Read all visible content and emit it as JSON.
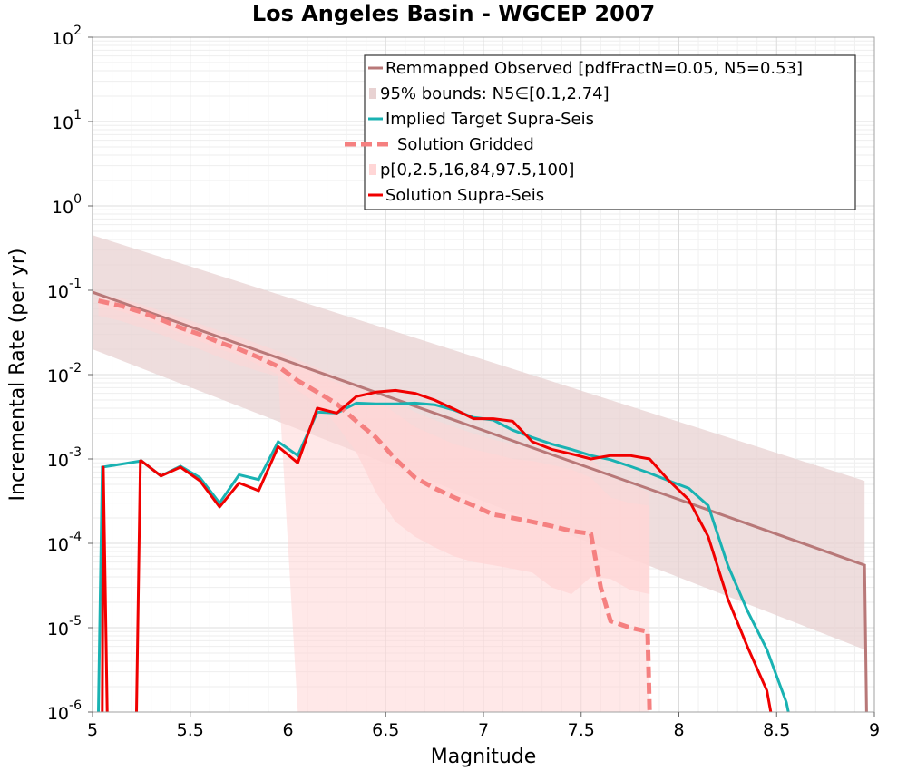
{
  "chart_data": {
    "type": "line",
    "title": "Los Angeles Basin - WGCEP 2007",
    "xlabel": "Magnitude",
    "ylabel": "Incremental Rate (per yr)",
    "xlim": [
      5,
      9
    ],
    "ylim": [
      1e-06,
      100
    ],
    "y_scale": "log",
    "grid": true,
    "legend_position": "top-right",
    "x_ticks": [
      "5",
      "5.5",
      "6",
      "6.5",
      "7",
      "7.5",
      "8",
      "8.5",
      "9"
    ],
    "y_ticks": [
      {
        "base": "10",
        "exp": "-6"
      },
      {
        "base": "10",
        "exp": "-5"
      },
      {
        "base": "10",
        "exp": "-4"
      },
      {
        "base": "10",
        "exp": "-3"
      },
      {
        "base": "10",
        "exp": "-2"
      },
      {
        "base": "10",
        "exp": "-1"
      },
      {
        "base": "10",
        "exp": "0"
      },
      {
        "base": "10",
        "exp": "1"
      },
      {
        "base": "10",
        "exp": "2"
      }
    ],
    "colors": {
      "observed": "#b87878",
      "bounds_fill": "#e8d2d2",
      "target": "#19b2b2",
      "gridded": "#f58080",
      "pfill": "#ffd6d6",
      "solution": "#f00000"
    },
    "series": [
      {
        "name": "Remmapped Observed [pdfFractN=0.05, N5=0.53]",
        "style": "line",
        "x": [
          5.0,
          8.95,
          8.96
        ],
        "y": [
          0.095,
          5.5e-05,
          1e-06
        ]
      },
      {
        "name": "95% bounds: N5∈[0.1,2.74]",
        "style": "band",
        "x": [
          5.0,
          8.95
        ],
        "upper": [
          0.45,
          0.00055
        ],
        "lower": [
          0.02,
          5.5e-06
        ]
      },
      {
        "name": "Implied Target Supra-Seis",
        "style": "line",
        "x": [
          5.03,
          5.05,
          5.25,
          5.35,
          5.45,
          5.55,
          5.65,
          5.75,
          5.85,
          5.95,
          6.05,
          6.15,
          6.25,
          6.35,
          6.45,
          6.55,
          6.65,
          6.75,
          6.85,
          6.95,
          7.05,
          7.15,
          7.25,
          7.35,
          7.45,
          7.55,
          7.65,
          7.75,
          7.85,
          7.95,
          8.05,
          8.15,
          8.25,
          8.35,
          8.45,
          8.55,
          8.56
        ],
        "y": [
          1e-06,
          0.0008,
          0.00095,
          0.00063,
          0.00082,
          0.0006,
          0.0003,
          0.00065,
          0.00057,
          0.0016,
          0.0011,
          0.0036,
          0.0035,
          0.0046,
          0.0045,
          0.0045,
          0.0046,
          0.0044,
          0.0038,
          0.0031,
          0.0029,
          0.0022,
          0.0018,
          0.0015,
          0.0013,
          0.0011,
          0.00098,
          0.00082,
          0.00068,
          0.00055,
          0.00045,
          0.00028,
          5.5e-05,
          1.6e-05,
          5.5e-06,
          1.3e-06,
          1e-06
        ]
      },
      {
        "name": "Solution Gridded",
        "style": "dashed",
        "x": [
          5.03,
          5.15,
          5.25,
          5.35,
          5.45,
          5.55,
          5.65,
          5.75,
          5.85,
          5.95,
          6.05,
          6.15,
          6.25,
          6.35,
          6.45,
          6.55,
          6.65,
          6.75,
          6.85,
          6.95,
          7.05,
          7.15,
          7.25,
          7.35,
          7.45,
          7.55,
          7.6,
          7.65,
          7.75,
          7.84,
          7.85
        ],
        "y": [
          0.075,
          0.065,
          0.055,
          0.045,
          0.036,
          0.03,
          0.024,
          0.02,
          0.016,
          0.0125,
          0.0085,
          0.0062,
          0.0045,
          0.0028,
          0.0018,
          0.001,
          0.0006,
          0.00045,
          0.00035,
          0.00028,
          0.00022,
          0.0002,
          0.00018,
          0.00016,
          0.00014,
          0.00013,
          3e-05,
          1.2e-05,
          1e-05,
          9e-06,
          1e-06
        ]
      },
      {
        "name": "p[0,2.5,16,84,97.5,100]",
        "style": "percentile-bands",
        "x": [
          5.03,
          5.15,
          5.25,
          5.35,
          5.45,
          5.55,
          5.65,
          5.75,
          5.85,
          5.95,
          6.05,
          6.15,
          6.25,
          6.35,
          6.45,
          6.55,
          6.65,
          6.75,
          6.85,
          6.95,
          7.05,
          7.15,
          7.25,
          7.35,
          7.45,
          7.55,
          7.65,
          7.75,
          7.85
        ],
        "p0": [
          0.05,
          0.043,
          0.036,
          0.03,
          0.024,
          0.02,
          0.016,
          0.013,
          0.011,
          0.0095,
          1e-06,
          1e-06,
          1e-06,
          1e-06,
          1e-06,
          1e-06,
          1e-06,
          1e-06,
          1e-06,
          1e-06,
          1e-06,
          1e-06,
          1e-06,
          1e-06,
          1e-06,
          1e-06,
          1e-06,
          1e-06,
          1e-06
        ],
        "p16": [
          0.065,
          0.056,
          0.047,
          0.038,
          0.031,
          0.025,
          0.02,
          0.017,
          0.013,
          0.01,
          0.0065,
          0.0045,
          0.0025,
          0.0012,
          0.0004,
          0.00018,
          0.00012,
          9e-05,
          7e-05,
          6e-05,
          5.5e-05,
          5e-05,
          4.5e-05,
          3e-05,
          2.5e-05,
          4e-05,
          3.8e-05,
          2.8e-05,
          2.5e-05
        ],
        "p84": [
          0.085,
          0.075,
          0.064,
          0.053,
          0.044,
          0.037,
          0.03,
          0.025,
          0.02,
          0.017,
          0.013,
          0.01,
          0.008,
          0.0065,
          0.005,
          0.0035,
          0.0024,
          0.0019,
          0.0015,
          0.0013,
          0.00115,
          0.001,
          0.00095,
          0.00085,
          0.00075,
          0.0006,
          0.00035,
          0.0003,
          0.00028
        ],
        "p100": [
          0.09,
          0.08,
          0.068,
          0.057,
          0.048,
          0.04,
          0.033,
          0.028,
          0.023,
          0.019,
          0.015,
          0.012,
          0.0095,
          0.0078,
          0.0062,
          0.0048,
          0.0036,
          0.0029,
          0.0024,
          0.002,
          0.0017,
          0.0015,
          0.0013,
          0.0012,
          0.0011,
          0.001,
          0.0006,
          0.0005,
          0.0004
        ]
      },
      {
        "name": "Solution Supra-Seis",
        "style": "line",
        "segments": [
          {
            "x": [
              5.05,
              5.055,
              5.075
            ],
            "y": [
              1e-06,
              0.0008,
              1e-06
            ]
          },
          {
            "x": [
              5.225,
              5.245,
              5.25,
              5.35,
              5.45,
              5.55,
              5.65,
              5.75,
              5.85,
              5.95,
              6.05,
              6.15,
              6.25,
              6.35,
              6.45,
              6.55,
              6.65,
              6.75,
              6.85,
              6.95,
              7.05,
              7.15,
              7.25,
              7.35,
              7.45,
              7.55,
              7.65,
              7.75,
              7.85,
              7.95,
              8.05,
              8.15,
              8.25,
              8.35,
              8.45,
              8.47
            ],
            "y": [
              1e-06,
              0.00095,
              0.00095,
              0.00063,
              0.0008,
              0.00055,
              0.00027,
              0.00052,
              0.00042,
              0.0014,
              0.0009,
              0.004,
              0.0035,
              0.0055,
              0.0062,
              0.0065,
              0.006,
              0.005,
              0.0039,
              0.003,
              0.003,
              0.0028,
              0.0016,
              0.0013,
              0.00115,
              0.001,
              0.0011,
              0.0011,
              0.001,
              0.00055,
              0.00033,
              0.00012,
              2.2e-05,
              6e-06,
              1.8e-06,
              1e-06
            ]
          }
        ]
      }
    ]
  }
}
